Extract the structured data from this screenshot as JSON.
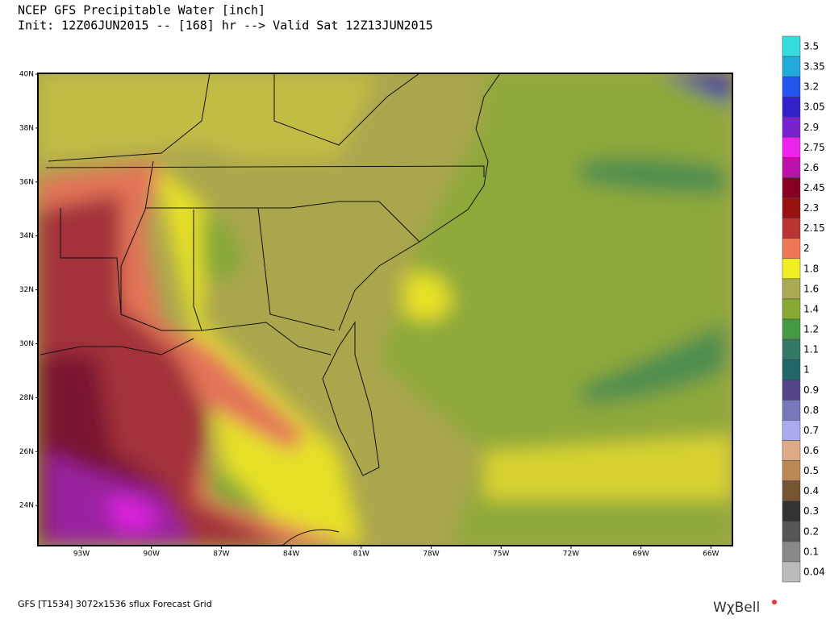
{
  "header": {
    "title": "NCEP GFS Precipitable Water [inch]",
    "subtitle": "Init: 12Z06JUN2015 -- [168] hr --> Valid Sat 12Z13JUN2015"
  },
  "map": {
    "lat_labels": [
      "40N",
      "38N",
      "36N",
      "34N",
      "32N",
      "30N",
      "28N",
      "26N",
      "24N"
    ],
    "lon_labels": [
      "93W",
      "90W",
      "87W",
      "84W",
      "81W",
      "78W",
      "75W",
      "72W",
      "69W",
      "66W"
    ]
  },
  "colorbar": {
    "levels": [
      {
        "value": 3.5,
        "color": "#33dddd"
      },
      {
        "value": 3.35,
        "color": "#22aadd"
      },
      {
        "value": 3.2,
        "color": "#2255ee"
      },
      {
        "value": 3.05,
        "color": "#3322cc"
      },
      {
        "value": 2.9,
        "color": "#7722cc"
      },
      {
        "value": 2.75,
        "color": "#ee22ee"
      },
      {
        "value": 2.6,
        "color": "#bb11aa"
      },
      {
        "value": 2.45,
        "color": "#880022"
      },
      {
        "value": 2.3,
        "color": "#991111"
      },
      {
        "value": 2.15,
        "color": "#bb3333"
      },
      {
        "value": 2,
        "color": "#ee7755"
      },
      {
        "value": 1.8,
        "color": "#eeee22"
      },
      {
        "value": 1.6,
        "color": "#aaaa55"
      },
      {
        "value": 1.4,
        "color": "#88aa33"
      },
      {
        "value": 1.2,
        "color": "#449944"
      },
      {
        "value": 1.1,
        "color": "#337766"
      },
      {
        "value": 1,
        "color": "#226666"
      },
      {
        "value": 0.9,
        "color": "#554488"
      },
      {
        "value": 0.8,
        "color": "#7777bb"
      },
      {
        "value": 0.7,
        "color": "#aaaaee"
      },
      {
        "value": 0.6,
        "color": "#ddaa88"
      },
      {
        "value": 0.5,
        "color": "#bb8855"
      },
      {
        "value": 0.4,
        "color": "#775533"
      },
      {
        "value": 0.3,
        "color": "#333333"
      },
      {
        "value": 0.2,
        "color": "#555555"
      },
      {
        "value": 0.1,
        "color": "#888888"
      },
      {
        "value": 0.04,
        "color": "#bbbbbb"
      }
    ]
  },
  "footer": {
    "source": "GFS [T1534] 3072x1536 sflux Forecast Grid",
    "logo": "WχBell"
  }
}
